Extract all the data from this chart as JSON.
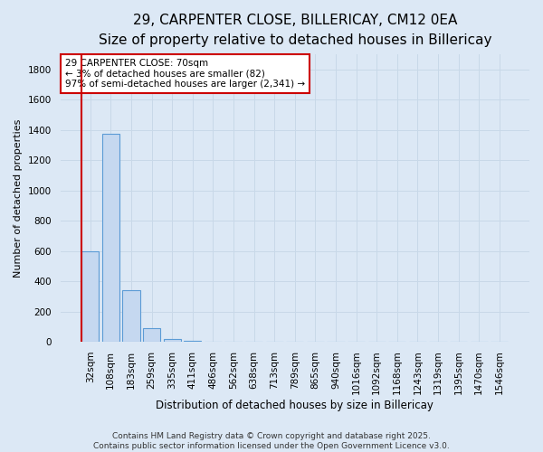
{
  "title": "29, CARPENTER CLOSE, BILLERICAY, CM12 0EA",
  "subtitle": "Size of property relative to detached houses in Billericay",
  "xlabel": "Distribution of detached houses by size in Billericay",
  "ylabel": "Number of detached properties",
  "categories": [
    "32sqm",
    "108sqm",
    "183sqm",
    "259sqm",
    "335sqm",
    "411sqm",
    "486sqm",
    "562sqm",
    "638sqm",
    "713sqm",
    "789sqm",
    "865sqm",
    "940sqm",
    "1016sqm",
    "1092sqm",
    "1168sqm",
    "1243sqm",
    "1319sqm",
    "1395sqm",
    "1470sqm",
    "1546sqm"
  ],
  "values": [
    600,
    1375,
    340,
    90,
    15,
    3,
    1,
    0,
    0,
    0,
    0,
    0,
    0,
    0,
    0,
    0,
    0,
    0,
    0,
    0,
    0
  ],
  "bar_color": "#c5d8f0",
  "bar_edge_color": "#5b9bd5",
  "annotation_text": "29 CARPENTER CLOSE: 70sqm\n← 3% of detached houses are smaller (82)\n97% of semi-detached houses are larger (2,341) →",
  "annotation_box_color": "#ffffff",
  "annotation_box_edge_color": "#cc0000",
  "vline_x": -0.05,
  "vline_color": "#cc0000",
  "ylim": [
    0,
    1900
  ],
  "yticks": [
    0,
    200,
    400,
    600,
    800,
    1000,
    1200,
    1400,
    1600,
    1800
  ],
  "background_color": "#dce8f5",
  "grid_color": "#c8d8e8",
  "footer_line1": "Contains HM Land Registry data © Crown copyright and database right 2025.",
  "footer_line2": "Contains public sector information licensed under the Open Government Licence v3.0.",
  "title_fontsize": 11,
  "subtitle_fontsize": 9,
  "xlabel_fontsize": 8.5,
  "ylabel_fontsize": 8,
  "tick_fontsize": 7.5,
  "annotation_fontsize": 7.5,
  "footer_fontsize": 6.5
}
